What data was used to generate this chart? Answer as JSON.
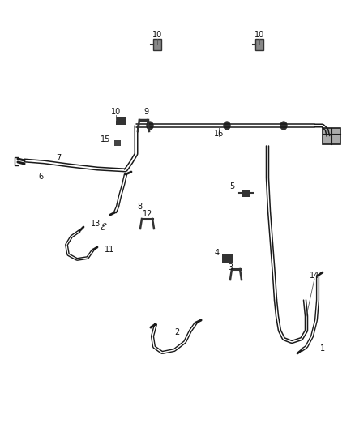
{
  "bg_color": "#ffffff",
  "line_color": "#1a1a1a",
  "label_color": "#111111",
  "figsize": [
    4.38,
    5.33
  ],
  "dpi": 100
}
